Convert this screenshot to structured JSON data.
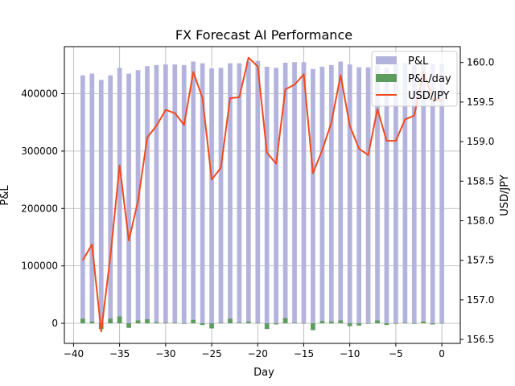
{
  "chart_data": {
    "type": "bar",
    "title": "FX Forecast AI Performance",
    "xlabel": "Day",
    "ylabel_left": "P&L",
    "ylabel_right": "USD/JPY",
    "grid": true,
    "legend_position": "top-right",
    "x": [
      -39,
      -38,
      -37,
      -36,
      -35,
      -34,
      -33,
      -32,
      -31,
      -30,
      -29,
      -28,
      -27,
      -26,
      -25,
      -24,
      -23,
      -22,
      -21,
      -20,
      -19,
      -18,
      -17,
      -16,
      -15,
      -14,
      -13,
      -12,
      -11,
      -10,
      -9,
      -8,
      -7,
      -6,
      -5,
      -4,
      -3,
      -2,
      -1,
      0
    ],
    "xlim": [
      -41,
      2
    ],
    "xticks": [
      -40,
      -35,
      -30,
      -25,
      -20,
      -15,
      -10,
      -5,
      0
    ],
    "ylim_left": [
      -35000,
      482000
    ],
    "yticks_left": [
      0,
      100000,
      200000,
      300000,
      400000
    ],
    "ylim_right": [
      156.45,
      160.2
    ],
    "yticks_right": [
      156.5,
      157.0,
      157.5,
      158.0,
      158.5,
      159.0,
      159.5,
      160.0
    ],
    "series": [
      {
        "name": "P&L",
        "axis": "left",
        "kind": "bar",
        "color": "#b3b3de",
        "values": [
          432000,
          435000,
          424000,
          432000,
          445000,
          435000,
          441000,
          448000,
          450000,
          451000,
          451000,
          450000,
          456000,
          453000,
          444000,
          445000,
          453000,
          453000,
          456000,
          457000,
          447000,
          445000,
          454000,
          455000,
          455000,
          443000,
          447000,
          450000,
          456000,
          451000,
          446000,
          446000,
          449000,
          446000,
          452000,
          453000,
          451000,
          452000,
          452000,
          452000
        ]
      },
      {
        "name": "P&L/day",
        "axis": "left",
        "kind": "bar",
        "color": "#5e9c5e",
        "values": [
          8000,
          3000,
          -10000,
          8000,
          12000,
          -8000,
          5000,
          7000,
          2000,
          1000,
          1000,
          -1000,
          6000,
          -3000,
          -9000,
          1000,
          8000,
          1000,
          3000,
          1000,
          -10000,
          -2000,
          9000,
          1000,
          0,
          -12000,
          4000,
          3000,
          5000,
          -5000,
          -4000,
          -1000,
          5000,
          -3000,
          -1000,
          1000,
          -1000,
          3000,
          -2000,
          0
        ]
      },
      {
        "name": "USD/JPY",
        "axis": "right",
        "kind": "line",
        "color": "#f04a1e",
        "values": [
          157.5,
          157.7,
          156.6,
          157.55,
          158.7,
          157.75,
          158.25,
          159.05,
          159.2,
          159.4,
          159.36,
          159.21,
          159.88,
          159.55,
          158.52,
          158.67,
          159.55,
          159.56,
          160.06,
          159.95,
          158.86,
          158.72,
          159.66,
          159.72,
          159.85,
          158.6,
          158.89,
          159.24,
          159.84,
          159.2,
          158.91,
          158.83,
          159.41,
          159.01,
          159.01,
          159.28,
          159.33,
          159.88,
          159.54,
          159.52
        ]
      }
    ]
  }
}
